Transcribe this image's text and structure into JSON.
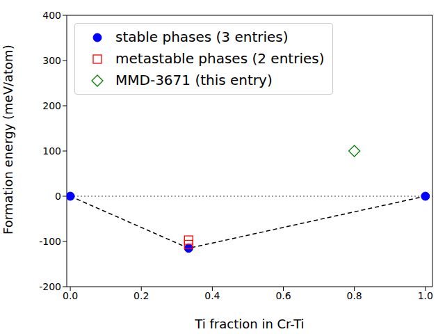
{
  "chart_data": {
    "type": "scatter",
    "x_label": "Ti fraction in Cr-Ti",
    "y_label": "Formation energy (meV/atom)",
    "xlim": [
      -0.01,
      1.02
    ],
    "ylim": [
      -200,
      400
    ],
    "xticks": [
      {
        "value": 0,
        "label": "0.0"
      },
      {
        "value": 0.2,
        "label": "0.2"
      },
      {
        "value": 0.4,
        "label": "0.4"
      },
      {
        "value": 0.6,
        "label": "0.6"
      },
      {
        "value": 0.8,
        "label": "0.8"
      },
      {
        "value": 1,
        "label": "1.0"
      }
    ],
    "yticks": [
      -200,
      -100,
      0,
      100,
      200,
      300,
      400
    ],
    "hline": 0,
    "legend": "upper left",
    "series": [
      {
        "name": "stable phases (3 entries)",
        "color": "#0000ff",
        "marker": "circle",
        "line_style": "dashed",
        "x": [
          0,
          0.3333,
          1
        ],
        "values": [
          0,
          -115,
          0
        ]
      },
      {
        "name": "metastable phases (2 entries)",
        "color": "#ff0000",
        "marker": "square",
        "x": [
          0.3333,
          0.3333
        ],
        "values": [
          -97,
          -107
        ]
      },
      {
        "name": "MMD-3671 (this entry)",
        "color": "#008000",
        "marker": "diamond",
        "x": [
          0.8
        ],
        "values": [
          100
        ]
      }
    ]
  }
}
